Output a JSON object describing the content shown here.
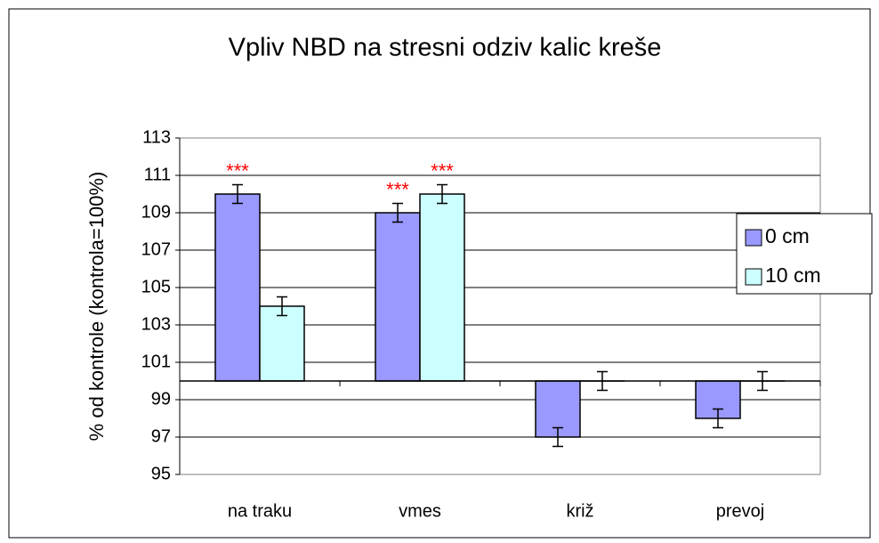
{
  "chart_data": {
    "type": "bar",
    "title": "Vpliv NBD na stresni odziv kalic kreše",
    "ylabel": "% od kontrole (kontrola=100%)",
    "categories": [
      "na traku",
      "vmes",
      "križ",
      "prevoj"
    ],
    "series": [
      {
        "name": "0 cm",
        "color": "#9999ff",
        "values": [
          110,
          109,
          97,
          98
        ],
        "errors": [
          0.5,
          0.5,
          0.5,
          0.5
        ],
        "significance": [
          "***",
          "***",
          null,
          null
        ]
      },
      {
        "name": "10 cm",
        "color": "#ccffff",
        "values": [
          104,
          110,
          100,
          100
        ],
        "errors": [
          0.5,
          0.5,
          0.5,
          0.5
        ],
        "significance": [
          null,
          "***",
          null,
          null
        ]
      }
    ],
    "significance_color": "#ff0000",
    "y_origin": 100,
    "ylim": [
      95,
      113
    ],
    "yticks": [
      95,
      97,
      99,
      101,
      103,
      105,
      107,
      109,
      111,
      113
    ],
    "grid": true,
    "legend": "right"
  }
}
